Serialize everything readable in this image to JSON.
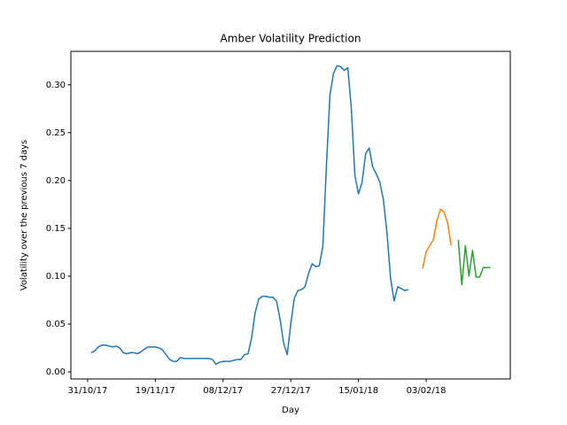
{
  "chart_data": {
    "type": "line",
    "title": "Amber Volatility Prediction",
    "x_label": "Day",
    "y_label": "Volatility over the previous 7 days",
    "xlim": [
      -4.7,
      118.6
    ],
    "ylim": [
      -0.0074,
      0.335
    ],
    "xticks": [
      {
        "value": 0,
        "label": "31/10/17"
      },
      {
        "value": 19,
        "label": "19/11/17"
      },
      {
        "value": 38,
        "label": "08/12/17"
      },
      {
        "value": 57,
        "label": "27/12/17"
      },
      {
        "value": 76,
        "label": "15/01/18"
      },
      {
        "value": 95,
        "label": "03/02/18"
      }
    ],
    "yticks": [
      {
        "value": 0,
        "label": "0.00"
      },
      {
        "value": 0.05,
        "label": "0.05"
      },
      {
        "value": 0.1,
        "label": "0.10"
      },
      {
        "value": 0.15,
        "label": "0.15"
      },
      {
        "value": 0.2,
        "label": "0.20"
      },
      {
        "value": 0.25,
        "label": "0.25"
      },
      {
        "value": 0.3,
        "label": "0.30"
      }
    ],
    "series": [
      {
        "color": "#1f77b4",
        "x": [
          1,
          2,
          3,
          4,
          5,
          6,
          7,
          8,
          9,
          10,
          11,
          12,
          13,
          14,
          15,
          16,
          17,
          18,
          19,
          20,
          21,
          22,
          23,
          24,
          25,
          26,
          27,
          28,
          29,
          30,
          31,
          32,
          33,
          34,
          35,
          36,
          37,
          38,
          39,
          40,
          41,
          42,
          43,
          44,
          45,
          46,
          47,
          48,
          49,
          50,
          51,
          52,
          53,
          54,
          55,
          56,
          57,
          58,
          59,
          60,
          61,
          62,
          63,
          64,
          65,
          66,
          67,
          68,
          69,
          70,
          71,
          72,
          73,
          74,
          75,
          76,
          77,
          78,
          79,
          80,
          81,
          82,
          83,
          84,
          85,
          86,
          87,
          88,
          89,
          90
        ],
        "values": [
          0.02,
          0.022,
          0.026,
          0.028,
          0.028,
          0.027,
          0.026,
          0.027,
          0.025,
          0.02,
          0.019,
          0.02,
          0.02,
          0.019,
          0.021,
          0.024,
          0.026,
          0.026,
          0.026,
          0.025,
          0.023,
          0.018,
          0.013,
          0.011,
          0.011,
          0.015,
          0.014,
          0.014,
          0.014,
          0.014,
          0.014,
          0.014,
          0.014,
          0.014,
          0.013,
          0.008,
          0.01,
          0.011,
          0.011,
          0.011,
          0.012,
          0.013,
          0.013,
          0.018,
          0.019,
          0.035,
          0.062,
          0.076,
          0.079,
          0.079,
          0.078,
          0.078,
          0.074,
          0.055,
          0.03,
          0.018,
          0.05,
          0.077,
          0.085,
          0.086,
          0.089,
          0.103,
          0.113,
          0.11,
          0.111,
          0.131,
          0.215,
          0.29,
          0.312,
          0.32,
          0.319,
          0.315,
          0.318,
          0.275,
          0.205,
          0.186,
          0.198,
          0.228,
          0.234,
          0.214,
          0.207,
          0.198,
          0.18,
          0.145,
          0.098,
          0.074,
          0.089,
          0.087,
          0.085,
          0.086
        ]
      },
      {
        "color": "#ff7f0e",
        "x": [
          94,
          95,
          96,
          97,
          98,
          99,
          100,
          101,
          102
        ],
        "values": [
          0.108,
          0.126,
          0.132,
          0.138,
          0.158,
          0.17,
          0.167,
          0.156,
          0.132
        ]
      },
      {
        "color": "#2ca02c",
        "x": [
          104,
          105,
          106,
          107,
          108,
          109,
          110,
          111,
          112,
          113
        ],
        "values": [
          0.138,
          0.091,
          0.132,
          0.1,
          0.127,
          0.099,
          0.099,
          0.109,
          0.109,
          0.109
        ]
      }
    ]
  }
}
